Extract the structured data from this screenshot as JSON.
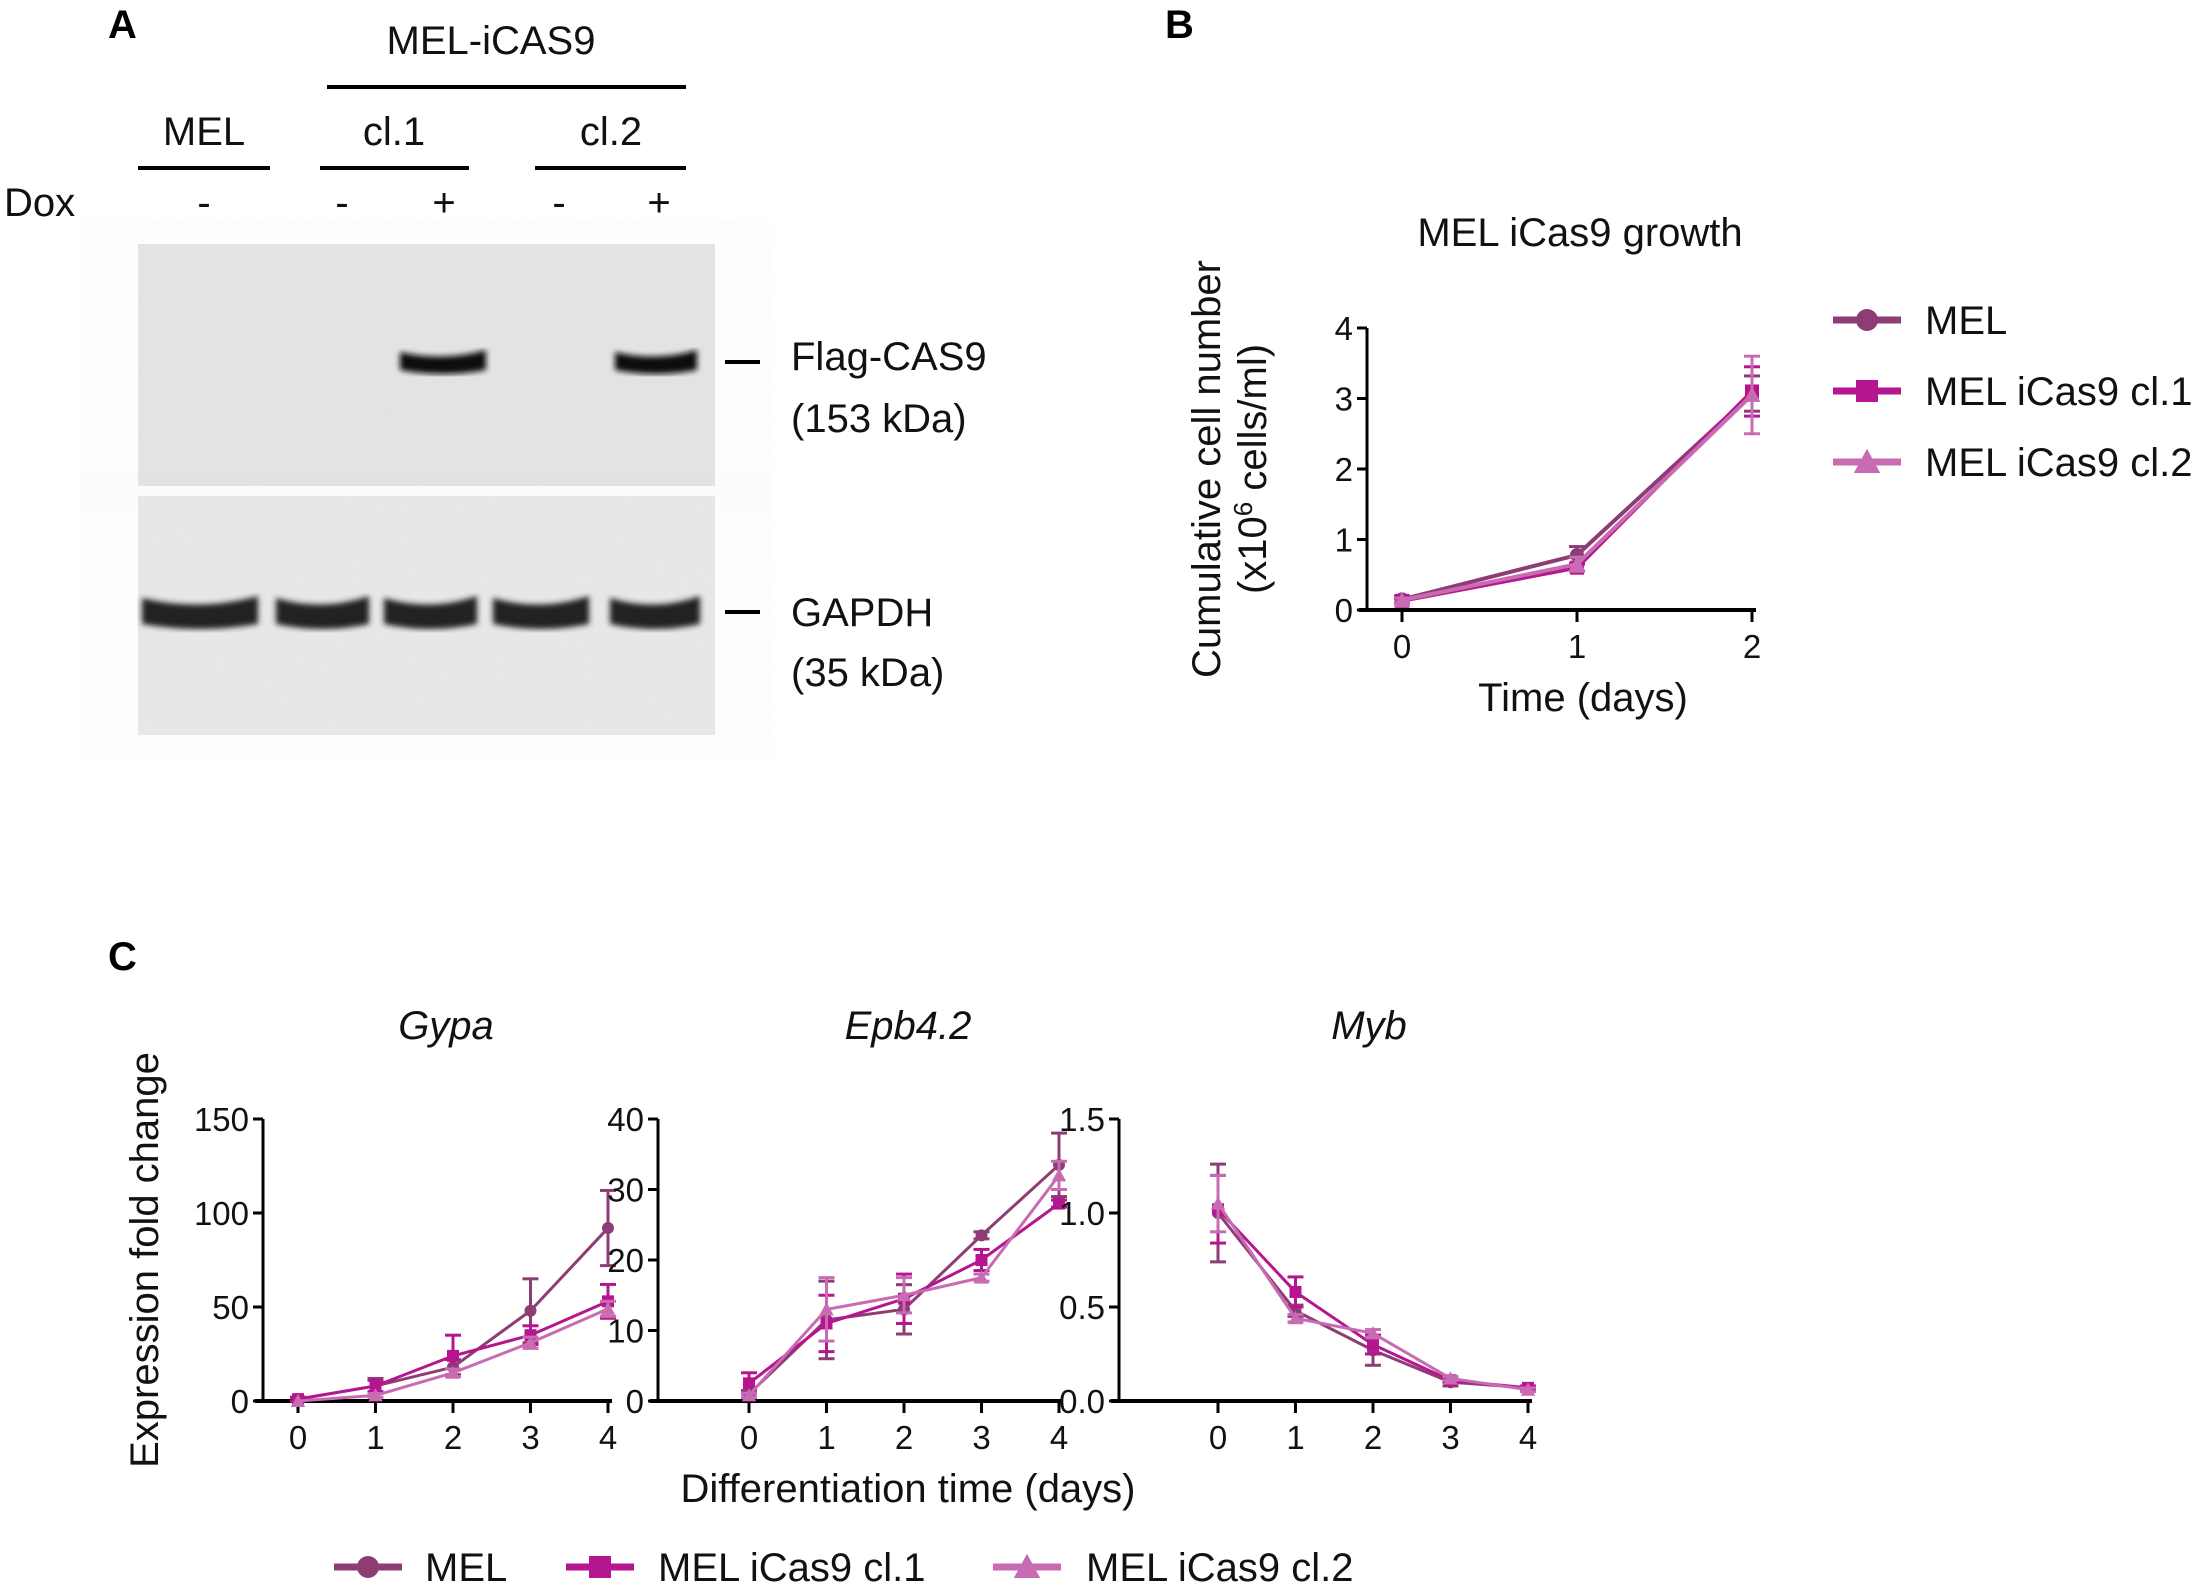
{
  "panel_a": {
    "letter": "A",
    "group_label": "MEL-iCAS9",
    "lanes": {
      "mel": "MEL",
      "cl1": "cl.1",
      "cl2": "cl.2"
    },
    "dox_label": "Dox",
    "dox": [
      "-",
      "-",
      "+",
      "-",
      "+"
    ],
    "bands": [
      {
        "name": "Flag-CAS9",
        "size": "(153 kDa)"
      },
      {
        "name": "GAPDH",
        "size": "(35 kDa)"
      }
    ]
  },
  "colors": {
    "MEL": "#8e3d74",
    "cl1": "#b5168f",
    "cl2": "#c86bb3"
  },
  "legend": [
    "MEL",
    "MEL iCas9 cl.1",
    "MEL iCas9 cl.2"
  ],
  "panel_b": {
    "letter": "B"
  },
  "panel_c": {
    "letter": "C",
    "ylabel": "Expression fold change",
    "xlabel": "Differentiation time (days)"
  },
  "chart_data": [
    {
      "type": "line",
      "title": "MEL iCas9 growth",
      "xlabel": "Time (days)",
      "ylabel_main": "Cumulative cell number",
      "ylabel_unit": [
        "(x10",
        "6",
        " cells/ml)"
      ],
      "x": [
        0,
        1,
        2
      ],
      "ylim": [
        0,
        4
      ],
      "yticks": [
        "0",
        "1",
        "2",
        "3",
        "4"
      ],
      "legend_position": "right",
      "series": [
        {
          "name": "MEL",
          "marker": "circle",
          "values": [
            0.15,
            0.78,
            3.07
          ],
          "err": [
            0.05,
            0.12,
            0.25
          ]
        },
        {
          "name": "MEL iCas9 cl.1",
          "marker": "square",
          "values": [
            0.13,
            0.6,
            3.1
          ],
          "err": [
            0.03,
            0.05,
            0.35
          ]
        },
        {
          "name": "MEL iCas9 cl.2",
          "marker": "triangle",
          "values": [
            0.14,
            0.65,
            3.05
          ],
          "err": [
            0.03,
            0.1,
            0.55
          ]
        }
      ]
    },
    {
      "type": "line",
      "title": "Gypa",
      "x": [
        0,
        1,
        2,
        3,
        4
      ],
      "ylim": [
        0,
        150
      ],
      "yticks": [
        "0",
        "50",
        "100",
        "150"
      ],
      "series": [
        {
          "name": "MEL",
          "values": [
            1,
            8,
            18,
            48,
            92
          ],
          "err": [
            1,
            4,
            4,
            17,
            20
          ]
        },
        {
          "name": "MEL iCas9 cl.1",
          "values": [
            1,
            8,
            24,
            35,
            53
          ],
          "err": [
            1,
            3,
            11,
            5,
            9
          ]
        },
        {
          "name": "MEL iCas9 cl.2",
          "values": [
            0,
            3,
            15,
            31,
            49
          ],
          "err": [
            0,
            1,
            2,
            3,
            4
          ]
        }
      ]
    },
    {
      "type": "line",
      "title": "Epb4.2",
      "x": [
        0,
        1,
        2,
        3,
        4
      ],
      "ylim": [
        0,
        40
      ],
      "yticks": [
        "0",
        "10",
        "20",
        "30",
        "40"
      ],
      "series": [
        {
          "name": "MEL",
          "values": [
            1,
            11.5,
            13,
            23.5,
            33.5
          ],
          "err": [
            0.5,
            5.5,
            3.5,
            0.5,
            4.5
          ]
        },
        {
          "name": "MEL iCas9 cl.1",
          "values": [
            2.5,
            11,
            14.5,
            20,
            28
          ],
          "err": [
            1.5,
            4,
            3.5,
            1.5,
            0.5
          ]
        },
        {
          "name": "MEL iCas9 cl.2",
          "values": [
            0.8,
            13,
            15,
            17.5,
            32
          ],
          "err": [
            0.3,
            4.5,
            2.5,
            0.5,
            2
          ]
        }
      ]
    },
    {
      "type": "line",
      "title": "Myb",
      "x": [
        0,
        1,
        2,
        3,
        4
      ],
      "ylim": [
        0,
        1.5
      ],
      "yticks": [
        "0.0",
        "0.5",
        "1.0",
        "1.5"
      ],
      "series": [
        {
          "name": "MEL",
          "values": [
            1.0,
            0.48,
            0.27,
            0.1,
            0.07
          ],
          "err": [
            0.26,
            0.03,
            0.08,
            0.02,
            0.01
          ]
        },
        {
          "name": "MEL iCas9 cl.1",
          "values": [
            1.02,
            0.58,
            0.3,
            0.11,
            0.07
          ],
          "err": [
            0.18,
            0.08,
            0.05,
            0.01,
            0.01
          ]
        },
        {
          "name": "MEL iCas9 cl.2",
          "values": [
            1.05,
            0.44,
            0.36,
            0.12,
            0.06
          ],
          "err": [
            0.15,
            0.02,
            0.02,
            0.01,
            0.01
          ]
        }
      ]
    }
  ]
}
